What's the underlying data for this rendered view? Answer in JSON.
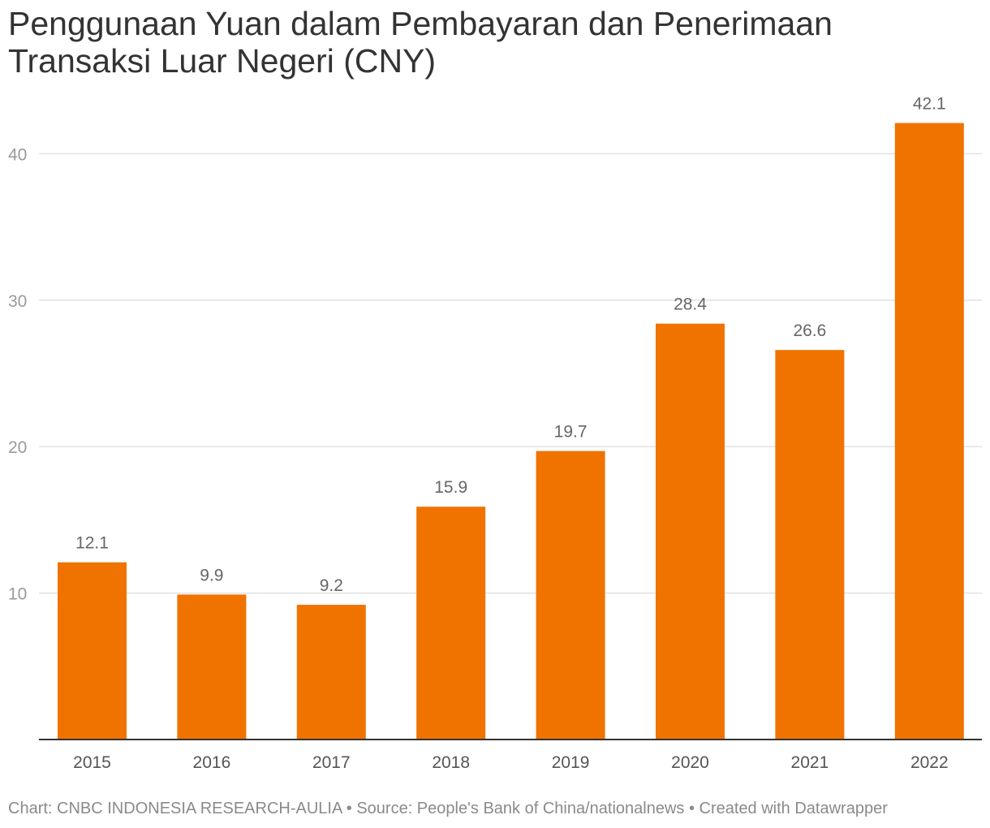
{
  "chart_data": {
    "type": "bar",
    "title": "Penggunaan Yuan dalam Pembayaran dan Penerimaan Transaksi Luar Negeri (CNY)",
    "categories": [
      "2015",
      "2016",
      "2017",
      "2018",
      "2019",
      "2020",
      "2021",
      "2022"
    ],
    "values": [
      12.1,
      9.9,
      9.2,
      15.9,
      19.7,
      28.4,
      26.6,
      42.1
    ],
    "data_labels": [
      "12.1",
      "9.9",
      "9.2",
      "15.9",
      "19.7",
      "28.4",
      "26.6",
      "42.1"
    ],
    "ylim": [
      0,
      40
    ],
    "yticks": [
      10,
      20,
      30,
      40
    ],
    "ytick_labels": [
      "10",
      "20",
      "30",
      "40"
    ],
    "grid": true,
    "bar_color": "#f07300"
  },
  "footer": {
    "text": "Chart: CNBC INDONESIA RESEARCH-AULIA • Source: People's Bank of China/nationalnews • Created with Datawrapper"
  }
}
